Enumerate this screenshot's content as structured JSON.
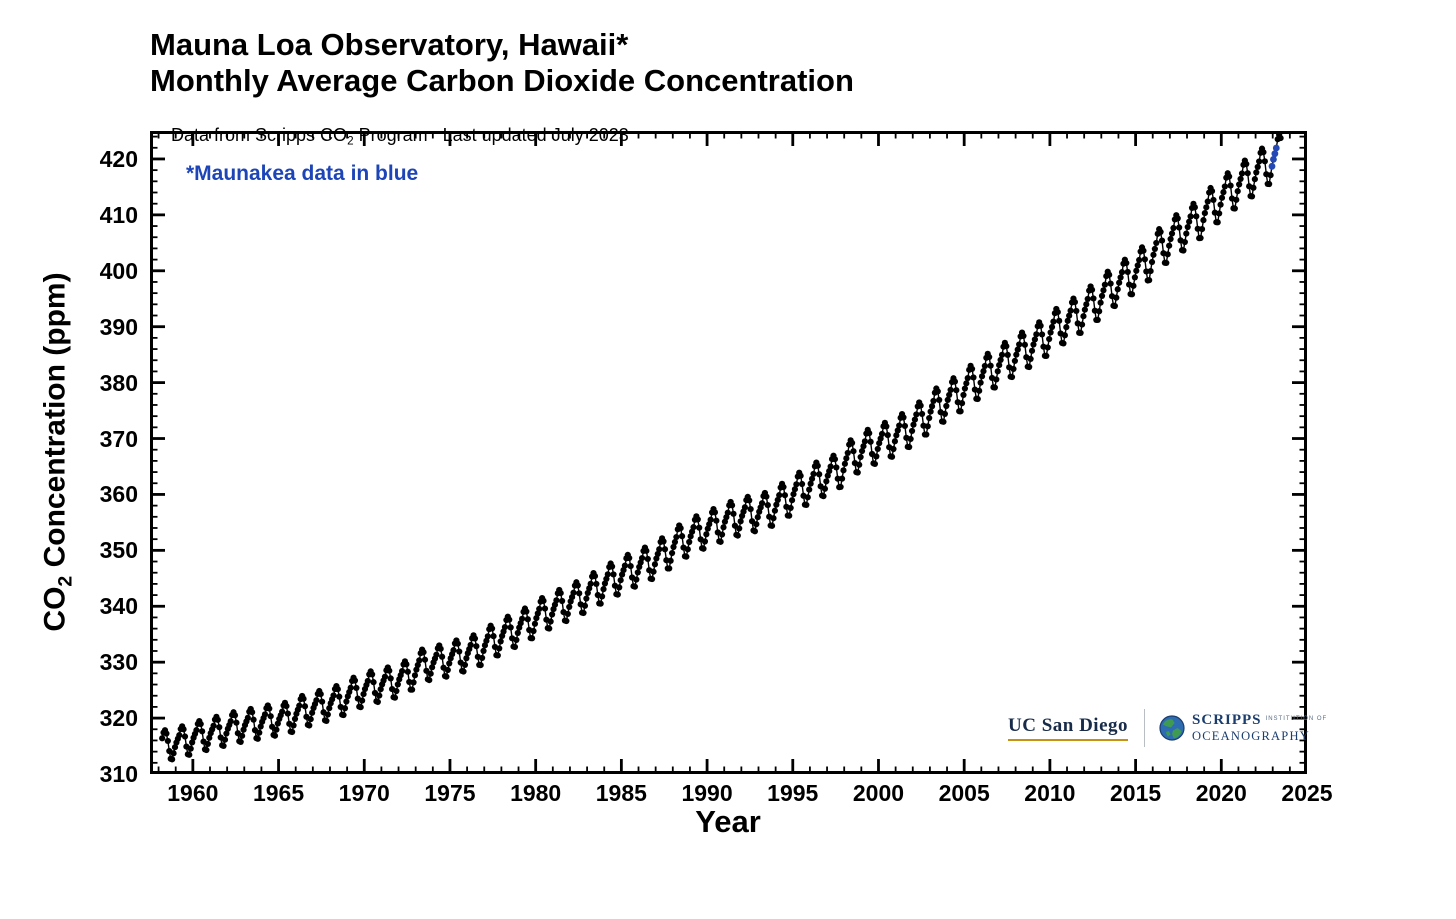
{
  "header": {
    "title_line1": "Mauna Loa Observatory, Hawaii*",
    "title_line2": "Monthly Average Carbon Dioxide Concentration",
    "subtitle_prefix": "Data from Scripps CO",
    "subtitle_sub": "2",
    "subtitle_suffix": " Program   Last updated July 2023"
  },
  "annotation": {
    "text": "*Maunakea data in blue",
    "color": "#1d45b8"
  },
  "axes": {
    "y_label_prefix": "CO",
    "y_label_sub": "2",
    "y_label_suffix": " Concentration (ppm)",
    "x_label": "Year"
  },
  "branding": {
    "ucsd": "UC San Diego",
    "scripps_line1": "SCRIPPS",
    "scripps_inst": "INSTITUTION OF",
    "scripps_line2": "OCEANOGRAPHY",
    "navy": "#182B49",
    "gold": "#C69214",
    "scripps_blue": "#1b3d6d"
  },
  "chart_data": {
    "type": "scatter",
    "title": "Mauna Loa Observatory, Hawaii* — Monthly Average Carbon Dioxide Concentration",
    "xlabel": "Year",
    "ylabel": "CO2 Concentration (ppm)",
    "xlim": [
      1957.5,
      2025
    ],
    "ylim": [
      310,
      425
    ],
    "x_major_ticks": [
      1960,
      1965,
      1970,
      1975,
      1980,
      1985,
      1990,
      1995,
      2000,
      2005,
      2010,
      2015,
      2020,
      2025
    ],
    "x_minor_step": 1,
    "y_major_ticks": [
      310,
      320,
      330,
      340,
      350,
      360,
      370,
      380,
      390,
      400,
      410,
      420
    ],
    "y_minor_step": 2,
    "grid": false,
    "legend": "none",
    "point_color": "#000000",
    "maunakea_color": "#2449b4",
    "line_color": "#000000",
    "series_name": "Monthly average CO2 (ppm)",
    "start_month": {
      "year": 1958,
      "month": 3
    },
    "end_month": {
      "year": 2023,
      "month": 6
    },
    "maunakea_months": [
      {
        "year": 2022,
        "month": 12
      },
      {
        "year": 2023,
        "month": 1
      },
      {
        "year": 2023,
        "month": 2
      },
      {
        "year": 2023,
        "month": 3
      }
    ],
    "annual_means_start_year": 1958,
    "annual_means": [
      315.2,
      315.98,
      316.91,
      317.64,
      318.45,
      318.99,
      319.62,
      320.04,
      321.37,
      322.18,
      323.05,
      324.62,
      325.68,
      326.32,
      327.46,
      329.68,
      330.19,
      331.12,
      332.03,
      333.84,
      335.41,
      336.84,
      338.76,
      340.12,
      341.48,
      343.15,
      344.85,
      346.35,
      347.61,
      349.31,
      351.69,
      353.2,
      354.45,
      355.7,
      356.54,
      357.21,
      358.96,
      360.97,
      362.74,
      363.88,
      366.84,
      368.54,
      369.71,
      371.32,
      373.45,
      375.98,
      377.7,
      379.98,
      382.09,
      384.02,
      385.83,
      387.64,
      390.1,
      391.85,
      394.06,
      396.74,
      398.81,
      401.01,
      404.41,
      406.76,
      408.72,
      411.66,
      414.24,
      416.45,
      418.56,
      421.08
    ],
    "seasonal_offsets_ppm": [
      0.0,
      0.7,
      1.4,
      2.6,
      3.1,
      2.4,
      0.8,
      -1.4,
      -3.1,
      -3.3,
      -2.1,
      -0.9
    ],
    "seasonal_amp_scale_start": 0.85,
    "seasonal_amp_scale_end": 1.15
  }
}
